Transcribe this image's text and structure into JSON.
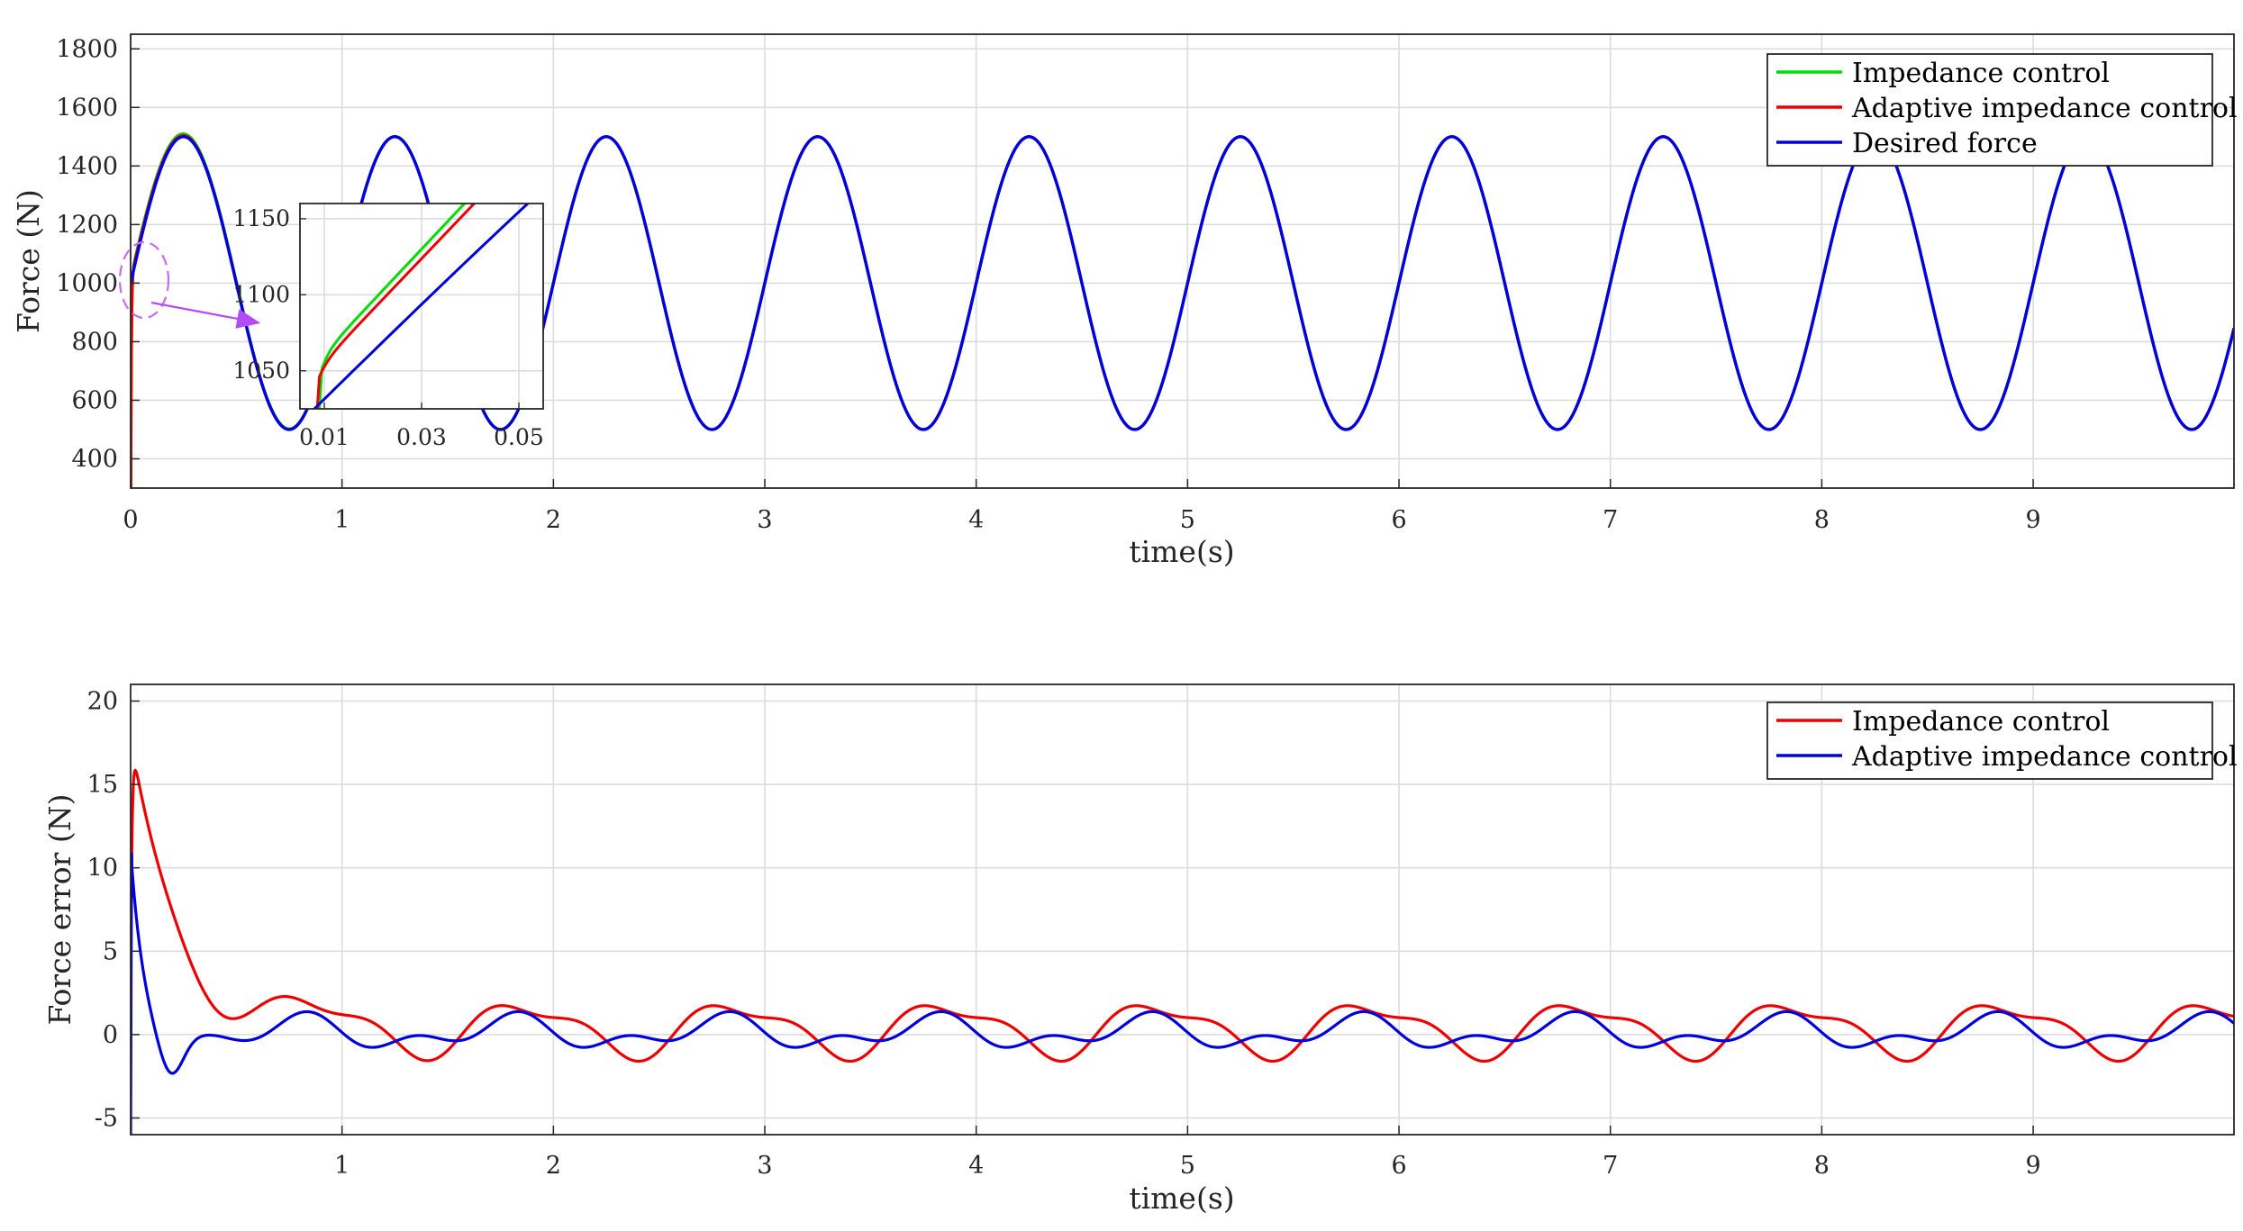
{
  "chart_data": [
    {
      "type": "line",
      "title": "",
      "xlabel": "time(s)",
      "ylabel": "Force (N)",
      "xlim": [
        0,
        9.95
      ],
      "ylim": [
        300,
        1850
      ],
      "grid": true,
      "legend_position": "top-right",
      "xticks": [
        "0",
        "1",
        "2",
        "3",
        "4",
        "5",
        "6",
        "7",
        "8",
        "9"
      ],
      "yticks": [
        "400",
        "600",
        "800",
        "1000",
        "1200",
        "1400",
        "1600",
        "1800"
      ],
      "desired_force": {
        "offset": 1000,
        "amplitude": 500,
        "period_s": 1.0
      },
      "series": [
        {
          "name": "Impedance control",
          "color": "#00dd00",
          "x": [
            0,
            0.01,
            0.03,
            0.1,
            0.2,
            0.25,
            0.3,
            0.5,
            0.75,
            1.0
          ],
          "y": [
            300,
            1040,
            1125,
            1330,
            1490,
            1505,
            1480,
            1000,
            500,
            1000
          ]
        },
        {
          "name": "Adaptive impedance control",
          "color": "#ee0000",
          "x": [
            0,
            0.01,
            0.03,
            0.1,
            0.2,
            0.25,
            0.3,
            0.5,
            0.75,
            1.0
          ],
          "y": [
            300,
            1042,
            1120,
            1325,
            1485,
            1500,
            1478,
            1000,
            500,
            1000
          ]
        },
        {
          "name": "Desired force",
          "color": "#0000dd",
          "x": [
            0,
            0.25,
            0.5,
            0.75,
            1.0,
            1.25,
            1.5,
            1.75,
            2.0
          ],
          "y": [
            1000,
            1500,
            1000,
            500,
            1000,
            1500,
            1000,
            500,
            1000
          ]
        }
      ],
      "inset": {
        "xlim": [
          0.005,
          0.055
        ],
        "ylim": [
          1025,
          1160
        ],
        "xticks": [
          "0.01",
          "0.03",
          "0.05"
        ],
        "yticks": [
          "1050",
          "1100",
          "1150"
        ]
      }
    },
    {
      "type": "line",
      "title": "",
      "xlabel": "time(s)",
      "ylabel": "Force error (N)",
      "xlim": [
        0,
        9.95
      ],
      "ylim": [
        -6,
        21
      ],
      "grid": true,
      "legend_position": "top-right",
      "xticks": [
        "1",
        "2",
        "3",
        "4",
        "5",
        "6",
        "7",
        "8",
        "9"
      ],
      "yticks": [
        "-5",
        "0",
        "5",
        "10",
        "15",
        "20"
      ],
      "series": [
        {
          "name": "Impedance control",
          "color": "#ee0000",
          "x": [
            0,
            0.02,
            0.1,
            0.3,
            0.5,
            0.65,
            0.85,
            1.1,
            1.4,
            1.6,
            1.85,
            2.1,
            2.6,
            2.85,
            3.1
          ],
          "y": [
            10,
            17.2,
            14.5,
            6.0,
            1.8,
            0.9,
            2.4,
            0.2,
            -0.8,
            -1.1,
            1.8,
            0.3,
            -1.1,
            1.8,
            0.2
          ]
        },
        {
          "name": "Adaptive impedance control",
          "color": "#0000dd",
          "x": [
            0,
            0.01,
            0.05,
            0.12,
            0.18,
            0.3,
            0.45,
            0.6,
            0.78,
            0.95,
            1.1,
            1.3,
            1.55,
            1.8,
            2.0
          ],
          "y": [
            -6,
            11,
            4.0,
            -1.2,
            -1.9,
            -0.3,
            -0.2,
            -0.1,
            1.1,
            -0.1,
            -0.5,
            -0.2,
            -0.4,
            1.2,
            -0.5
          ]
        }
      ]
    }
  ]
}
